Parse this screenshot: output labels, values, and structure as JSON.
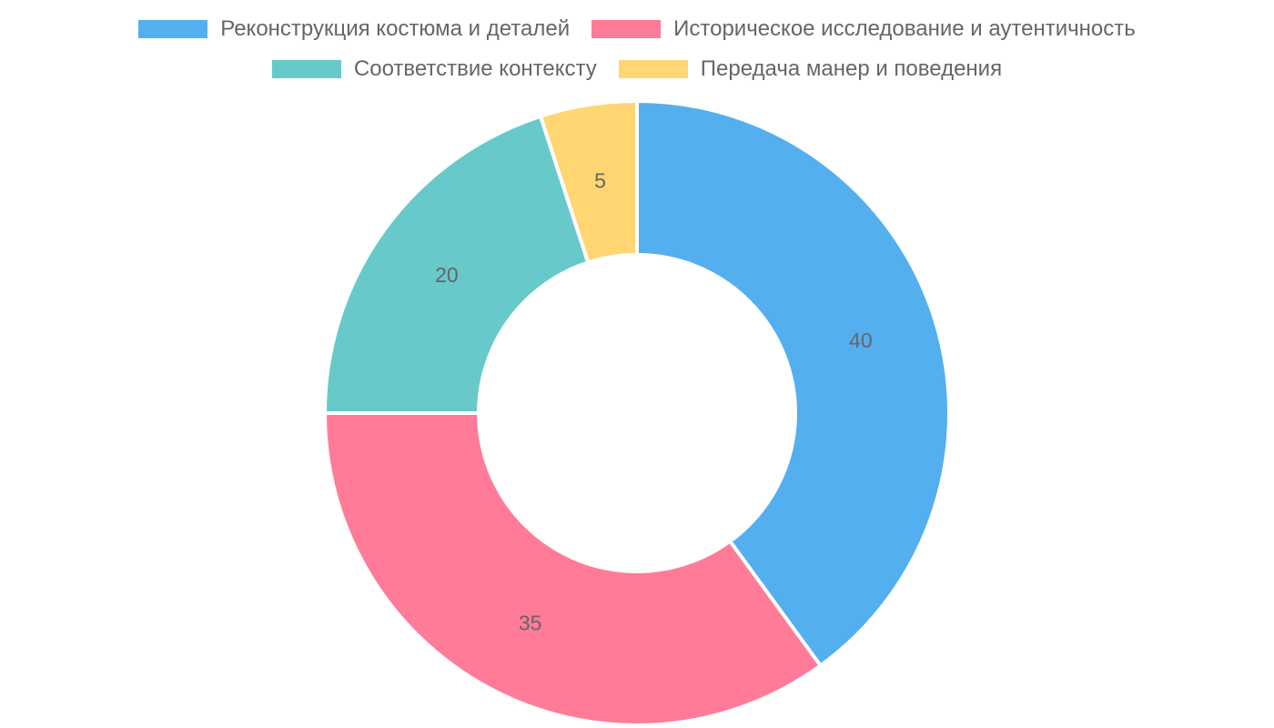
{
  "chart_data": {
    "type": "pie",
    "variant": "doughnut",
    "title": "",
    "categories": [
      "Реконструкция костюма и деталей",
      "Историческое исследование и аутентичность",
      "Соответствие контексту",
      "Передача манер и поведения"
    ],
    "values": [
      40,
      35,
      20,
      5
    ],
    "colors": [
      "#54AFEE",
      "#FF7B98",
      "#67C9C9",
      "#FFD672"
    ],
    "legend_position": "top",
    "data_labels": [
      "40",
      "35",
      "20",
      "5"
    ]
  }
}
